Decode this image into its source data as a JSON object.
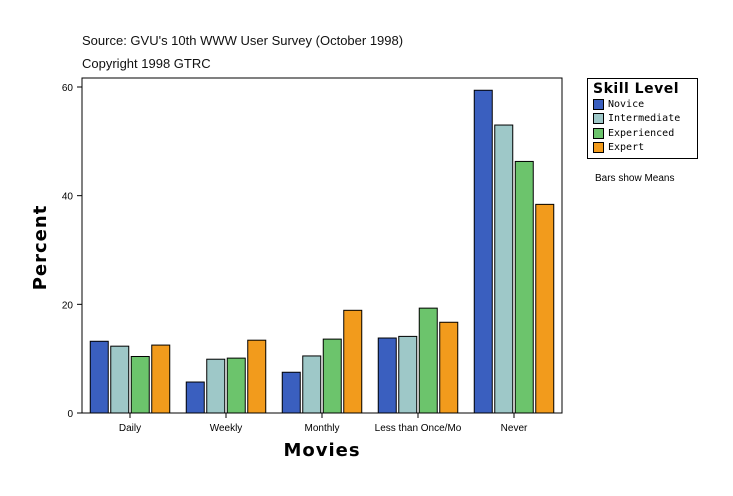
{
  "header": {
    "source": "Source: GVU's 10th WWW User Survey (October 1998)",
    "copyright": "Copyright 1998 GTRC"
  },
  "legend": {
    "title": "Skill Level"
  },
  "note": "Bars show Means",
  "chart_data": {
    "type": "bar",
    "xlabel": "Movies",
    "ylabel": "Percent",
    "categories": [
      "Daily",
      "Weekly",
      "Monthly",
      "Less than Once/Mo",
      "Never"
    ],
    "ylim": [
      0,
      60
    ],
    "yticks": [
      0,
      20,
      40,
      60
    ],
    "series": [
      {
        "name": "Novice",
        "color": "#3a5fbf",
        "values": [
          13.2,
          5.7,
          7.5,
          13.8,
          59.4
        ]
      },
      {
        "name": "Intermediate",
        "color": "#9ec8c8",
        "values": [
          12.3,
          9.9,
          10.5,
          14.1,
          53.0
        ]
      },
      {
        "name": "Experienced",
        "color": "#6cc46c",
        "values": [
          10.4,
          10.1,
          13.6,
          19.3,
          46.3
        ]
      },
      {
        "name": "Expert",
        "color": "#f29b1c",
        "values": [
          12.5,
          13.4,
          18.9,
          16.7,
          38.4
        ]
      }
    ]
  }
}
